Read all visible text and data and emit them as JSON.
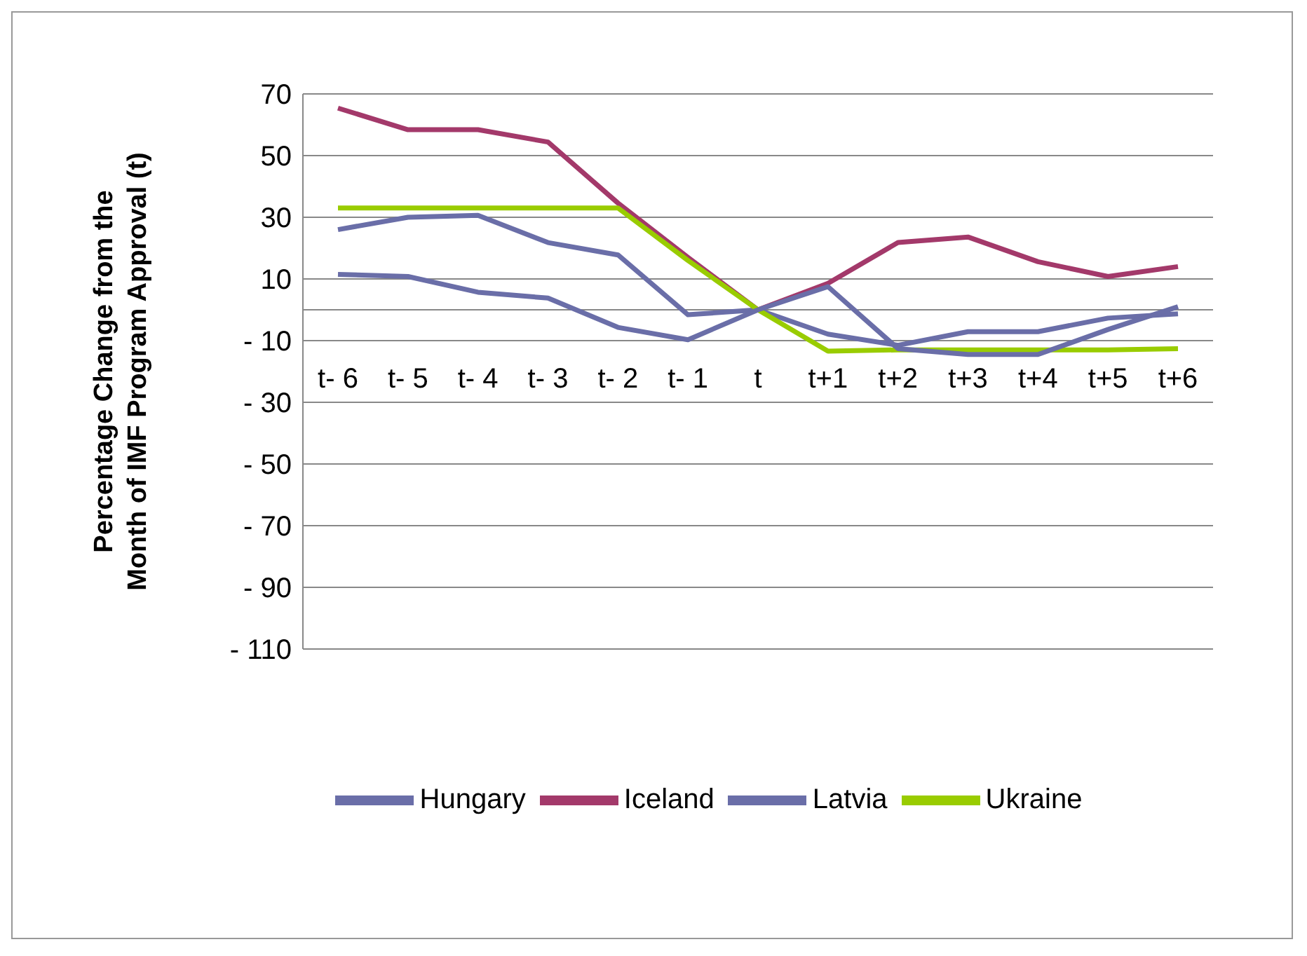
{
  "chart_data": {
    "type": "line",
    "ylabel": "Percentage Change from the Month of IMF Program Approval (t)",
    "categories": [
      "t- 6",
      "t- 5",
      "t- 4",
      "t- 3",
      "t- 2",
      "t- 1",
      "t",
      "t+1",
      "t+2",
      "t+3",
      "t+4",
      "t+5",
      "t+6"
    ],
    "series": [
      {
        "name": "Hungary",
        "color": "#6a6ea8",
        "values": [
          26,
          30,
          30.6,
          21.8,
          17.8,
          -1.6,
          0,
          -7.9,
          -11.5,
          -7.1,
          -7.1,
          -2.7,
          -1.3
        ]
      },
      {
        "name": "Iceland",
        "color": "#a3396a",
        "values": [
          65.4,
          58.4,
          58.4,
          54.4,
          34.6,
          17,
          0,
          8.6,
          21.8,
          23.6,
          15.6,
          10.8,
          14
        ]
      },
      {
        "name": "Ukraine",
        "color": "#99cc00",
        "values": [
          33,
          33,
          33,
          33,
          33,
          16,
          0,
          -13.4,
          -13,
          -13,
          -13,
          -13,
          -12.6
        ]
      },
      {
        "name": "Latvia",
        "color": "#6a6ea8",
        "values": [
          11.5,
          10.8,
          5.7,
          3.8,
          -5.7,
          -9.7,
          0,
          7.5,
          -12.6,
          -14.5,
          -14.5,
          -6.4,
          1
        ]
      }
    ],
    "ylim": [
      -110,
      70
    ],
    "yticks": [
      {
        "value": -110,
        "label": "- 110"
      },
      {
        "value": -90,
        "label": "- 90"
      },
      {
        "value": -70,
        "label": "- 70"
      },
      {
        "value": -50,
        "label": "- 50"
      },
      {
        "value": -30,
        "label": "- 30"
      },
      {
        "value": -10,
        "label": "- 10"
      },
      10,
      30,
      50,
      70
    ],
    "grid": "y",
    "legend": "bottom",
    "marker": "none",
    "line_style": "solid"
  }
}
